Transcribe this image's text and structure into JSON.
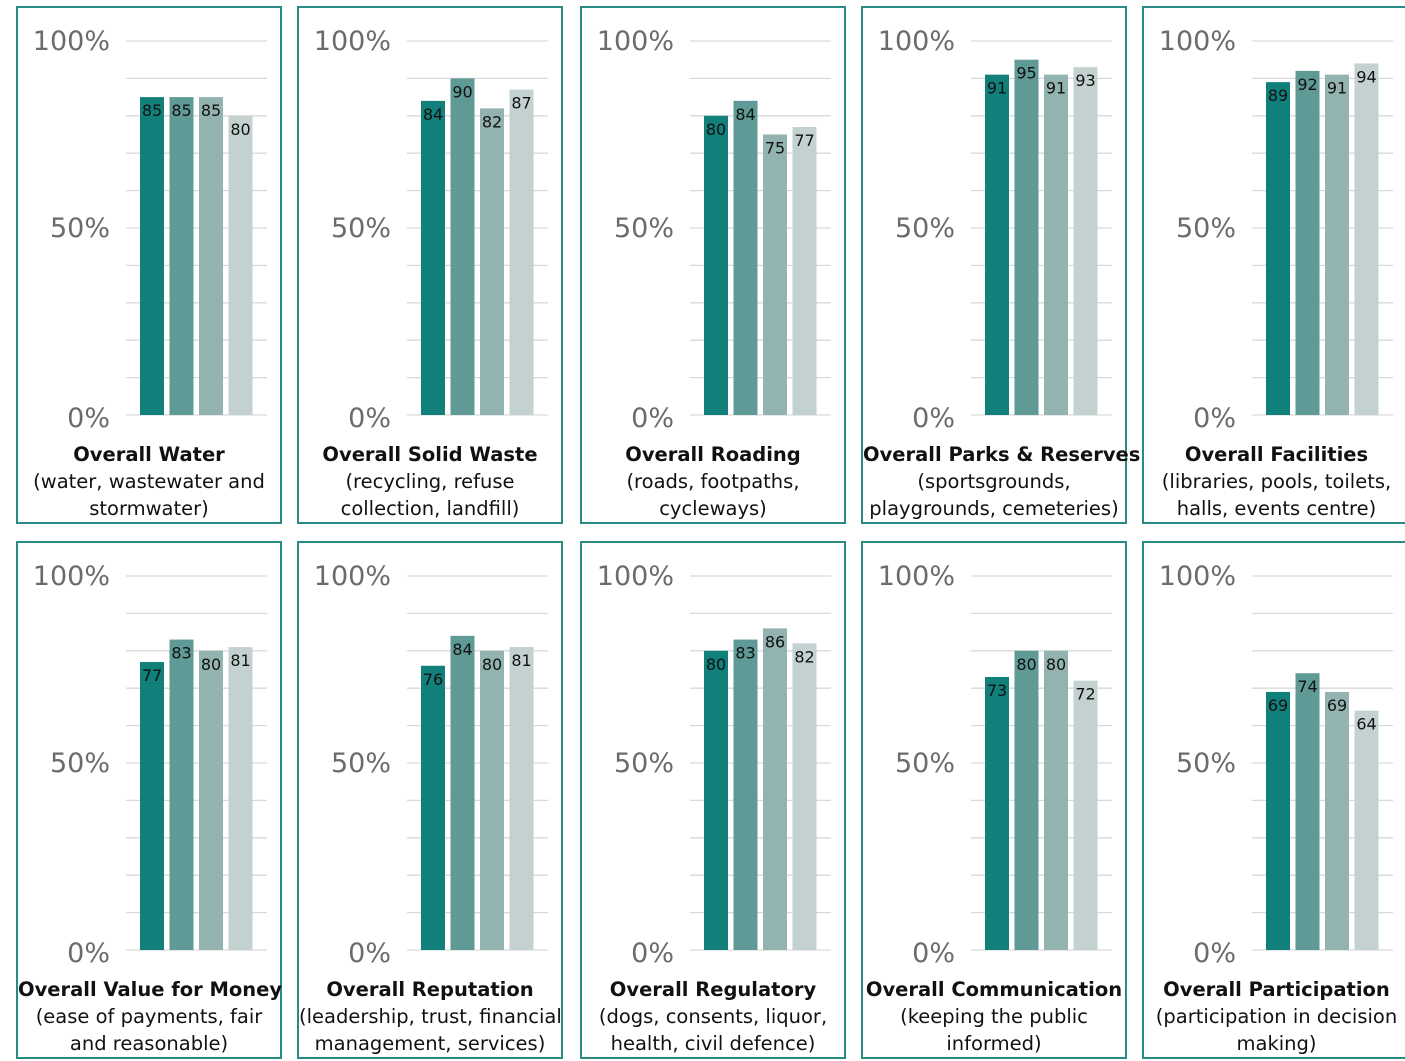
{
  "colors": [
    "#117f7a",
    "#5f9a96",
    "#93b3b1",
    "#c3d2d0"
  ],
  "chart_data": {
    "type": "bar",
    "yticks": [
      "0%",
      "50%",
      "100%"
    ],
    "ylim": [
      0,
      100
    ],
    "grid": true,
    "charts": [
      {
        "title": "Overall Water",
        "subtitle": [
          "(water, wastewater and",
          "stormwater)"
        ],
        "values": [
          85,
          85,
          85,
          80
        ]
      },
      {
        "title": "Overall Solid Waste",
        "subtitle": [
          "(recycling, refuse",
          "collection, landfill)"
        ],
        "values": [
          84,
          90,
          82,
          87
        ]
      },
      {
        "title": "Overall Roading",
        "subtitle": [
          "(roads, footpaths,",
          "cycleways)"
        ],
        "values": [
          80,
          84,
          75,
          77
        ]
      },
      {
        "title": "Overall Parks & Reserves",
        "subtitle": [
          "(sportsgrounds,",
          "playgrounds, cemeteries)"
        ],
        "values": [
          91,
          95,
          91,
          93
        ]
      },
      {
        "title": "Overall Facilities",
        "subtitle": [
          "(libraries, pools, toilets,",
          "halls, events centre)"
        ],
        "values": [
          89,
          92,
          91,
          94
        ]
      },
      {
        "title": "Overall Value for Money",
        "subtitle": [
          "(ease of payments, fair",
          "and reasonable)"
        ],
        "values": [
          77,
          83,
          80,
          81
        ]
      },
      {
        "title": "Overall Reputation",
        "subtitle": [
          "(leadership, trust, financial",
          "management, services)"
        ],
        "values": [
          76,
          84,
          80,
          81
        ]
      },
      {
        "title": "Overall Regulatory",
        "subtitle": [
          "(dogs, consents, liquor,",
          "health, civil defence)"
        ],
        "values": [
          80,
          83,
          86,
          82
        ]
      },
      {
        "title": "Overall Communication",
        "subtitle": [
          "(keeping the public",
          "informed)"
        ],
        "values": [
          73,
          80,
          80,
          72
        ]
      },
      {
        "title": "Overall Participation",
        "subtitle": [
          "(participation in decision",
          "making)"
        ],
        "values": [
          69,
          74,
          69,
          64
        ]
      }
    ]
  }
}
